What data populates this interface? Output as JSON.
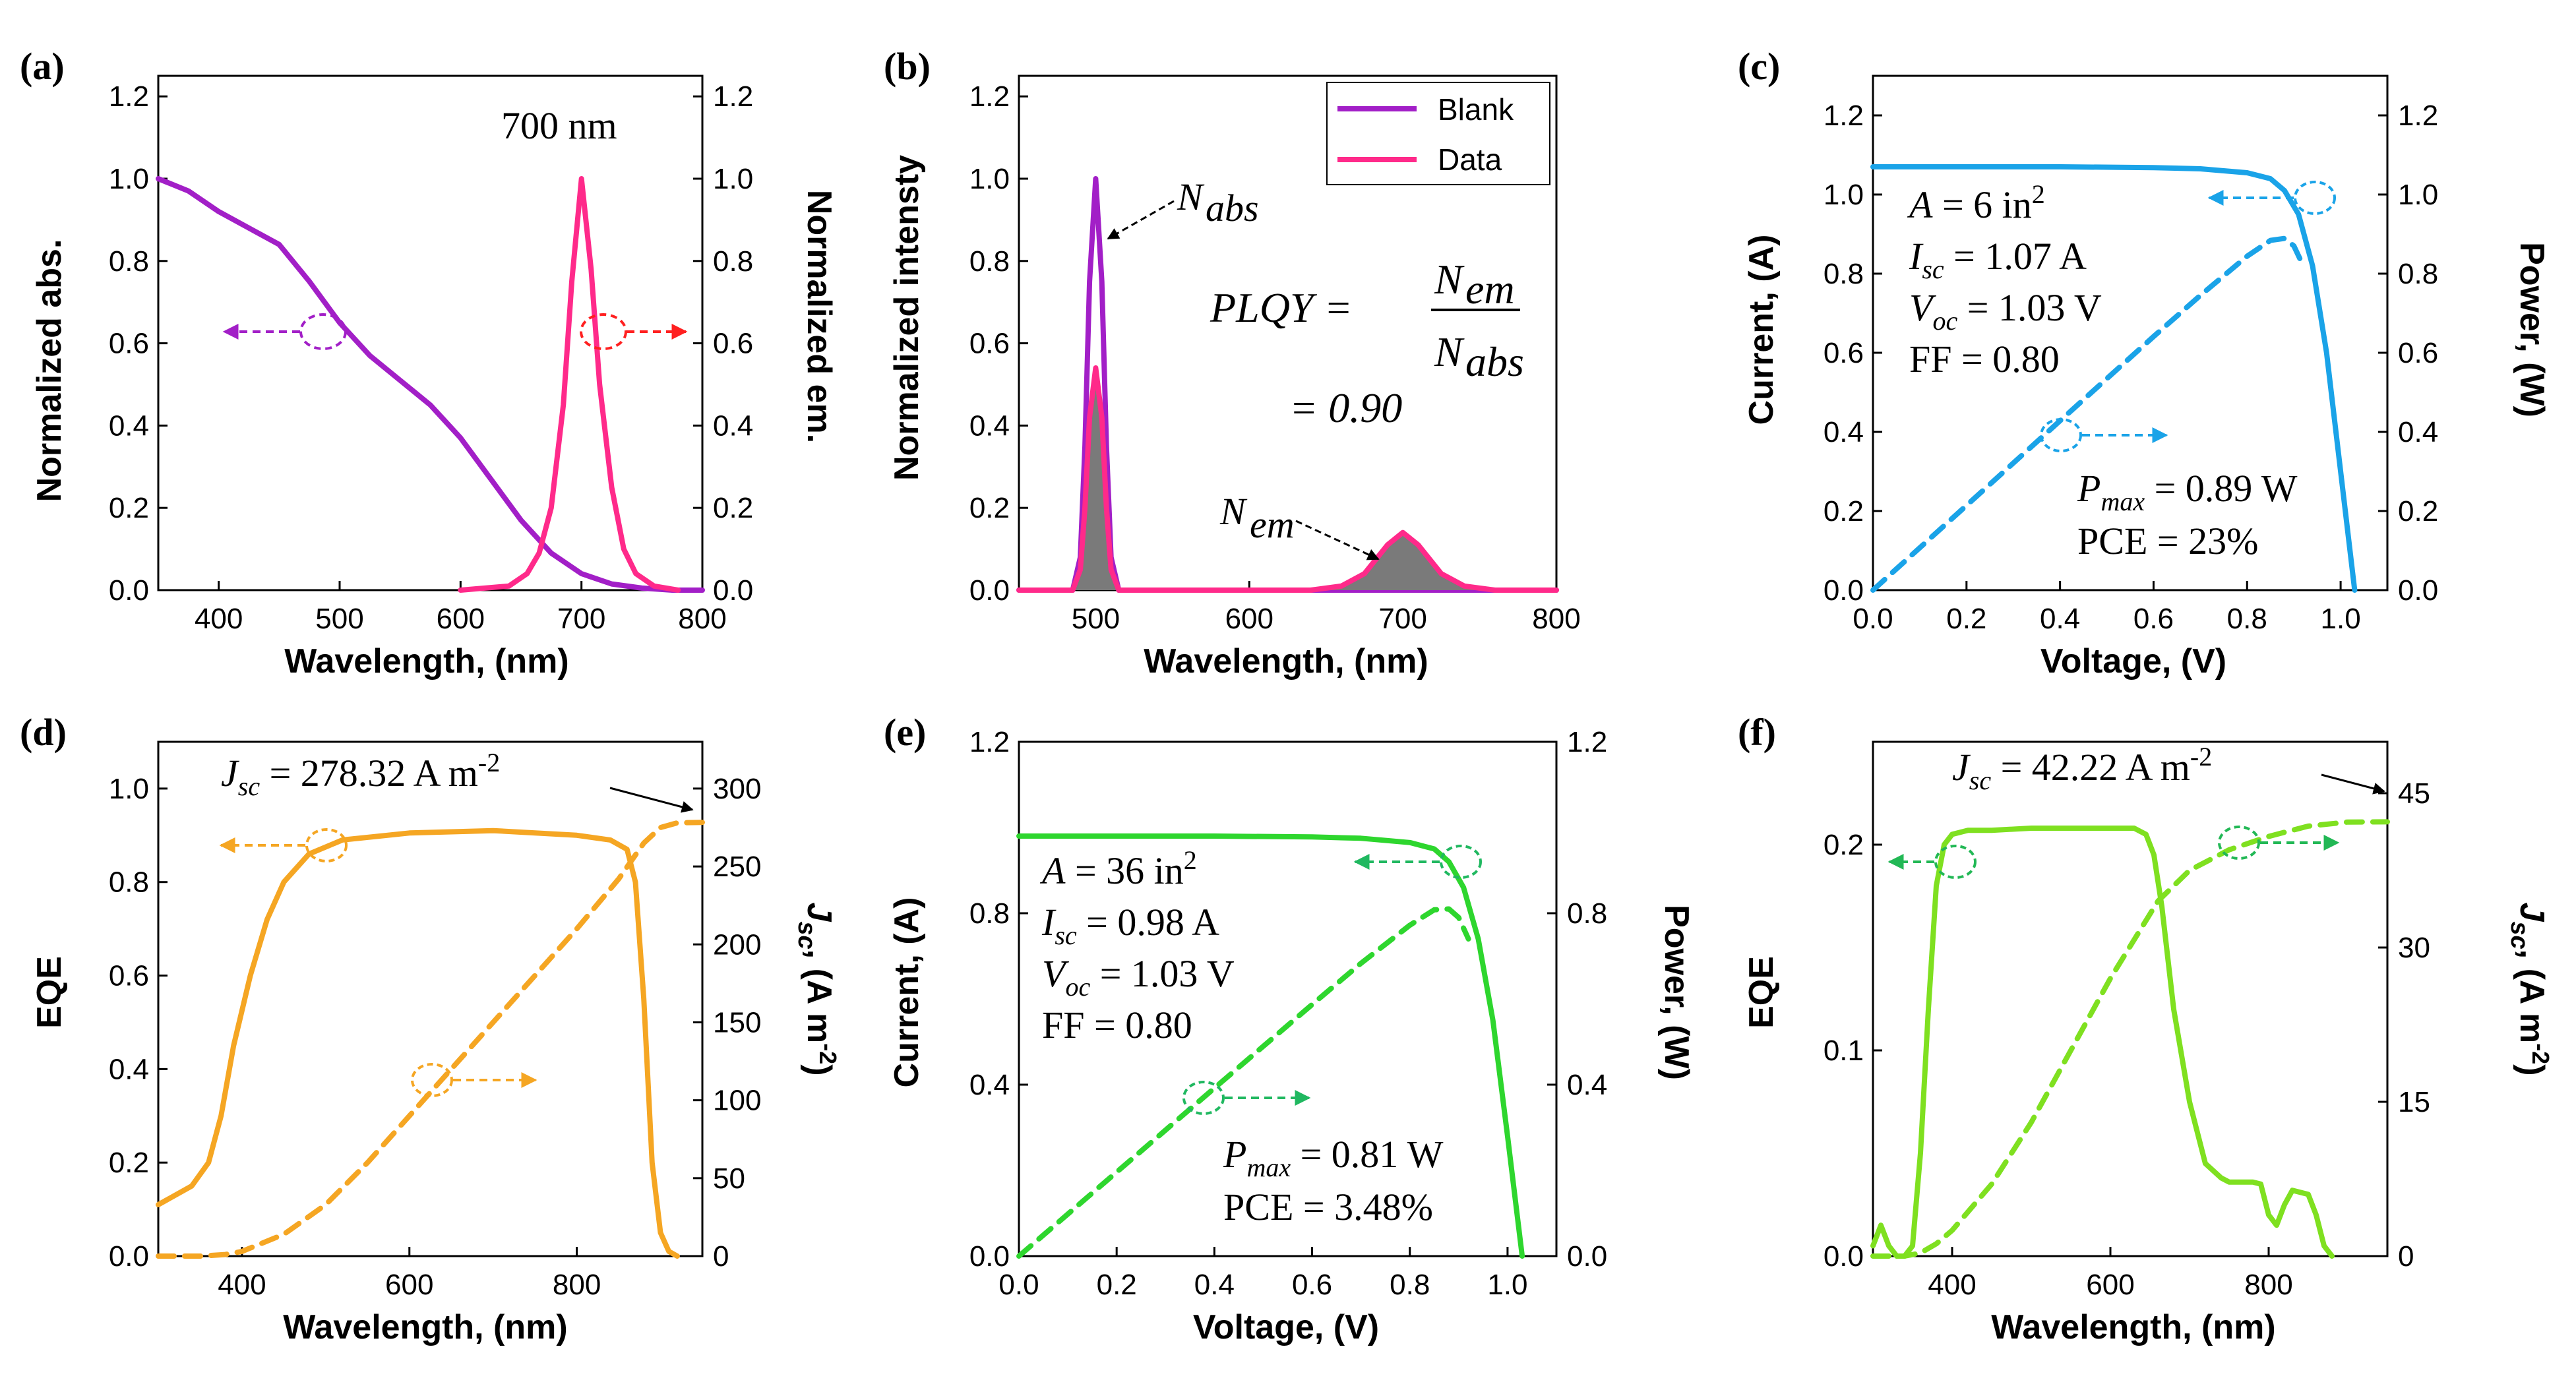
{
  "chart_data": [
    {
      "type": "line",
      "panel": "(a)",
      "title": "",
      "annotation": "700 nm",
      "xlabel": "Wavelength, (nm)",
      "ylabel": "Normalized abs.",
      "y2label": "Normalized em.",
      "xlim": [
        350,
        800
      ],
      "ylim": [
        0,
        1.25
      ],
      "y2lim": [
        0,
        1.25
      ],
      "xticks": [
        400,
        500,
        600,
        700,
        800
      ],
      "yticks": [
        0.0,
        0.2,
        0.4,
        0.6,
        0.8,
        1.0,
        1.2
      ],
      "ytick_labels": [
        "0.0",
        "0.2",
        "0.4",
        "0.6",
        "0.8",
        "1.0",
        "1.2"
      ],
      "y2tick_labels": [
        "0.0",
        "0.2",
        "0.4",
        "0.6",
        "0.8",
        "1.0",
        "1.2"
      ],
      "series": [
        {
          "name": "Normalized abs.",
          "axis": "left",
          "color": "#a21fc7",
          "style": "solid",
          "x": [
            350,
            375,
            400,
            425,
            450,
            475,
            500,
            525,
            550,
            575,
            600,
            625,
            650,
            675,
            700,
            725,
            750,
            775,
            800
          ],
          "y": [
            1.0,
            0.97,
            0.92,
            0.88,
            0.84,
            0.75,
            0.65,
            0.57,
            0.51,
            0.45,
            0.37,
            0.27,
            0.17,
            0.09,
            0.04,
            0.015,
            0.005,
            0.0,
            0.0
          ]
        },
        {
          "name": "Normalized em.",
          "axis": "right",
          "color": "#ff2a8a",
          "style": "solid",
          "x": [
            600,
            640,
            655,
            665,
            675,
            685,
            692,
            700,
            708,
            715,
            725,
            735,
            745,
            760,
            780
          ],
          "y": [
            0.0,
            0.01,
            0.04,
            0.09,
            0.2,
            0.45,
            0.75,
            1.0,
            0.78,
            0.5,
            0.25,
            0.1,
            0.04,
            0.01,
            0.0
          ]
        }
      ]
    },
    {
      "type": "line",
      "panel": "(b)",
      "xlabel": "Wavelength, (nm)",
      "ylabel": "Normalized intensty",
      "xlim": [
        450,
        800
      ],
      "ylim": [
        0,
        1.25
      ],
      "xticks": [
        500,
        600,
        700,
        800
      ],
      "yticks": [
        0.0,
        0.2,
        0.4,
        0.6,
        0.8,
        1.0,
        1.2
      ],
      "ytick_labels": [
        "0.0",
        "0.2",
        "0.4",
        "0.6",
        "0.8",
        "1.0",
        "1.2"
      ],
      "legend": [
        "Blank",
        "Data"
      ],
      "labels": {
        "n_abs_main": "N",
        "n_abs_sub": "abs",
        "n_em_main": "N",
        "n_em_sub": "em"
      },
      "formula": {
        "lhs": "PLQY =",
        "num": "N",
        "num_sub": "em",
        "den": "N",
        "den_sub": "abs",
        "result": "= 0.90"
      },
      "series": [
        {
          "name": "Blank",
          "color": "#a21fc7",
          "style": "solid",
          "x": [
            450,
            485,
            490,
            493,
            496,
            500,
            504,
            507,
            510,
            515,
            550,
            800
          ],
          "y": [
            0.0,
            0.0,
            0.08,
            0.35,
            0.75,
            1.0,
            0.75,
            0.35,
            0.08,
            0.0,
            0.0,
            0.0
          ]
        },
        {
          "name": "Data",
          "color": "#ff2a8a",
          "style": "solid",
          "x": [
            450,
            485,
            490,
            493,
            496,
            500,
            504,
            507,
            510,
            515,
            640,
            660,
            675,
            690,
            700,
            710,
            725,
            740,
            760,
            800
          ],
          "y": [
            0.0,
            0.0,
            0.05,
            0.2,
            0.42,
            0.54,
            0.42,
            0.2,
            0.05,
            0.0,
            0.0,
            0.01,
            0.04,
            0.11,
            0.14,
            0.11,
            0.04,
            0.01,
            0.0,
            0.0
          ]
        }
      ]
    },
    {
      "type": "line",
      "panel": "(c)",
      "xlabel": "Voltage, (V)",
      "ylabel": "Current, (A)",
      "y2label": "Power, (W)",
      "xlim": [
        0,
        1.1
      ],
      "ylim": [
        0,
        1.3
      ],
      "y2lim": [
        0,
        1.3
      ],
      "xticks": [
        0.0,
        0.2,
        0.4,
        0.6,
        0.8,
        1.0
      ],
      "xtick_labels": [
        "0.0",
        "0.2",
        "0.4",
        "0.6",
        "0.8",
        "1.0"
      ],
      "yticks": [
        0.0,
        0.2,
        0.4,
        0.6,
        0.8,
        1.0,
        1.2
      ],
      "ytick_labels": [
        "0.0",
        "0.2",
        "0.4",
        "0.6",
        "0.8",
        "1.0",
        "1.2"
      ],
      "y2tick_labels": [
        "0.0",
        "0.2",
        "0.4",
        "0.6",
        "0.8",
        "1.0",
        "1.2"
      ],
      "annotations": {
        "area_main": "A",
        "area_val": " = 6 in",
        "area_sup": "2",
        "isc_main": "I",
        "isc_sub": "sc",
        "isc_val": " = 1.07 A",
        "voc_main": "V",
        "voc_sub": "oc",
        "voc_val": " = 1.03 V",
        "ff": "FF = 0.80",
        "pmax_main": "P",
        "pmax_sub": "max",
        "pmax_val": " = 0.89 W",
        "pce": "PCE = 23%"
      },
      "series": [
        {
          "name": "Current",
          "axis": "left",
          "color": "#1aa3e8",
          "style": "solid",
          "x": [
            0.0,
            0.2,
            0.4,
            0.6,
            0.7,
            0.8,
            0.85,
            0.88,
            0.91,
            0.94,
            0.97,
            1.0,
            1.03
          ],
          "y": [
            1.07,
            1.07,
            1.07,
            1.068,
            1.065,
            1.055,
            1.04,
            1.01,
            0.95,
            0.82,
            0.6,
            0.3,
            0.0
          ]
        },
        {
          "name": "Power",
          "axis": "right",
          "color": "#1aa3e8",
          "style": "dashed",
          "x": [
            0.0,
            0.2,
            0.4,
            0.6,
            0.7,
            0.8,
            0.85,
            0.88,
            0.9,
            0.92
          ],
          "y": [
            0.0,
            0.214,
            0.428,
            0.641,
            0.745,
            0.844,
            0.884,
            0.889,
            0.87,
            0.82
          ]
        }
      ]
    },
    {
      "type": "line",
      "panel": "(d)",
      "xlabel": "Wavelength, (nm)",
      "ylabel": "EQE",
      "y2label": "J",
      "y2label_sub": "sc",
      "y2label_rest": ", (A m",
      "y2label_sup": "-2",
      "y2label_end": ")",
      "xlim": [
        300,
        950
      ],
      "ylim": [
        0,
        1.1
      ],
      "y2lim": [
        0,
        330
      ],
      "xticks": [
        400,
        600,
        800
      ],
      "yticks": [
        0.0,
        0.2,
        0.4,
        0.6,
        0.8,
        1.0
      ],
      "ytick_labels": [
        "0.0",
        "0.2",
        "0.4",
        "0.6",
        "0.8",
        "1.0"
      ],
      "y2ticks": [
        0,
        50,
        100,
        150,
        200,
        250,
        300
      ],
      "annotations": {
        "jsc_main": "J",
        "jsc_sub": "sc",
        "jsc_val": " = 278.32 A m",
        "jsc_sup": "-2"
      },
      "series": [
        {
          "name": "EQE",
          "axis": "left",
          "color": "#f5a623",
          "style": "solid",
          "x": [
            300,
            340,
            360,
            375,
            390,
            410,
            430,
            450,
            480,
            520,
            600,
            700,
            800,
            840,
            860,
            870,
            880,
            890,
            900,
            910,
            920
          ],
          "y": [
            0.11,
            0.15,
            0.2,
            0.3,
            0.45,
            0.6,
            0.72,
            0.8,
            0.86,
            0.89,
            0.905,
            0.91,
            0.9,
            0.89,
            0.87,
            0.8,
            0.55,
            0.2,
            0.05,
            0.01,
            0.0
          ]
        },
        {
          "name": "Jsc",
          "axis": "right",
          "color": "#f5a623",
          "style": "dashed",
          "x": [
            300,
            350,
            380,
            400,
            450,
            500,
            550,
            600,
            650,
            700,
            750,
            800,
            850,
            880,
            900,
            920,
            950
          ],
          "y": [
            0,
            0,
            1,
            3,
            14,
            33,
            60,
            90,
            120,
            150,
            180,
            210,
            242,
            265,
            275,
            278,
            278.32
          ]
        }
      ]
    },
    {
      "type": "line",
      "panel": "(e)",
      "xlabel": "Voltage, (V)",
      "ylabel": "Current, (A)",
      "y2label": "Power, (W)",
      "xlim": [
        0,
        1.1
      ],
      "ylim": [
        0,
        1.2
      ],
      "y2lim": [
        0,
        1.2
      ],
      "xticks": [
        0.0,
        0.2,
        0.4,
        0.6,
        0.8,
        1.0
      ],
      "xtick_labels": [
        "0.0",
        "0.2",
        "0.4",
        "0.6",
        "0.8",
        "1.0"
      ],
      "yticks": [
        0.0,
        0.4,
        0.8,
        1.2
      ],
      "ytick_labels": [
        "0.0",
        "0.4",
        "0.8",
        "1.2"
      ],
      "y2tick_labels": [
        "0.0",
        "0.4",
        "0.8",
        "1.2"
      ],
      "annotations": {
        "area_main": "A",
        "area_val": " = 36 in",
        "area_sup": "2",
        "isc_main": "I",
        "isc_sub": "sc",
        "isc_val": " = 0.98 A",
        "voc_main": "V",
        "voc_sub": "oc",
        "voc_val": " = 1.03 V",
        "ff": "FF = 0.80",
        "pmax_main": "P",
        "pmax_sub": "max",
        "pmax_val": " = 0.81 W",
        "pce": "PCE = 3.48%"
      },
      "series": [
        {
          "name": "Current",
          "axis": "left",
          "color": "#2ed62e",
          "style": "solid",
          "x": [
            0.0,
            0.2,
            0.4,
            0.6,
            0.7,
            0.8,
            0.85,
            0.88,
            0.91,
            0.94,
            0.97,
            1.0,
            1.03
          ],
          "y": [
            0.98,
            0.98,
            0.98,
            0.978,
            0.975,
            0.965,
            0.95,
            0.92,
            0.86,
            0.74,
            0.55,
            0.28,
            0.0
          ]
        },
        {
          "name": "Power",
          "axis": "right",
          "color": "#2ed62e",
          "style": "dashed",
          "x": [
            0.0,
            0.2,
            0.4,
            0.6,
            0.7,
            0.8,
            0.85,
            0.88,
            0.9,
            0.92
          ],
          "y": [
            0.0,
            0.196,
            0.392,
            0.587,
            0.683,
            0.772,
            0.808,
            0.81,
            0.79,
            0.74
          ]
        }
      ]
    },
    {
      "type": "line",
      "panel": "(f)",
      "xlabel": "Wavelength, (nm)",
      "ylabel": "EQE",
      "y2label": "J",
      "y2label_sub": "sc",
      "y2label_rest": ", (A m",
      "y2label_sup": "-2",
      "y2label_end": ")",
      "xlim": [
        300,
        950
      ],
      "ylim": [
        0,
        0.25
      ],
      "y2lim": [
        0,
        50
      ],
      "xticks": [
        400,
        600,
        800
      ],
      "yticks": [
        0.0,
        0.1,
        0.2
      ],
      "ytick_labels": [
        "0.0",
        "0.1",
        "0.2"
      ],
      "y2ticks": [
        0,
        15,
        30,
        45
      ],
      "annotations": {
        "jsc_main": "J",
        "jsc_sub": "sc",
        "jsc_val": " = 42.22 A m",
        "jsc_sup": "-2"
      },
      "series": [
        {
          "name": "EQE",
          "axis": "left",
          "color": "#7fe020",
          "style": "solid",
          "x": [
            300,
            310,
            320,
            330,
            340,
            350,
            360,
            370,
            380,
            390,
            400,
            420,
            450,
            500,
            550,
            600,
            630,
            645,
            655,
            665,
            680,
            700,
            720,
            740,
            750,
            770,
            780,
            790,
            800,
            810,
            820,
            830,
            850,
            860,
            870,
            880
          ],
          "y": [
            0.005,
            0.015,
            0.005,
            0.0,
            0.0,
            0.005,
            0.05,
            0.12,
            0.18,
            0.2,
            0.205,
            0.207,
            0.207,
            0.208,
            0.208,
            0.208,
            0.208,
            0.205,
            0.195,
            0.17,
            0.12,
            0.075,
            0.045,
            0.038,
            0.036,
            0.036,
            0.036,
            0.035,
            0.02,
            0.015,
            0.025,
            0.032,
            0.03,
            0.02,
            0.005,
            0.0
          ]
        },
        {
          "name": "Jsc",
          "axis": "right",
          "color": "#7fe020",
          "style": "dashed",
          "x": [
            300,
            340,
            360,
            380,
            400,
            450,
            500,
            550,
            600,
            640,
            660,
            700,
            750,
            800,
            850,
            900,
            950
          ],
          "y": [
            0,
            0,
            0.3,
            1.2,
            2.5,
            7,
            13,
            20,
            27,
            32,
            34.5,
            37.5,
            39.5,
            40.8,
            41.8,
            42.2,
            42.22
          ]
        }
      ]
    }
  ]
}
